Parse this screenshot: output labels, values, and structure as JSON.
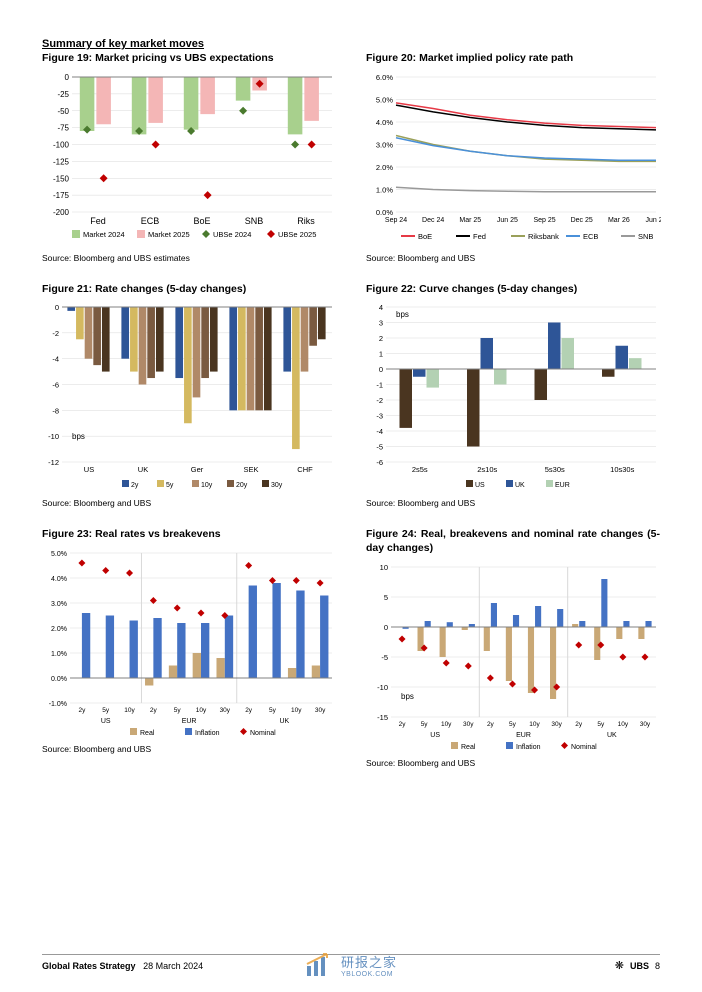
{
  "summary_title": "Summary of key market moves",
  "footer": {
    "title": "Global Rates Strategy",
    "date": "28 March 2024",
    "bank": "UBS",
    "page": "8"
  },
  "watermark": {
    "text": "研报之家",
    "sub": "YBLOOK.COM"
  },
  "colors": {
    "green": "#a8d08d",
    "pink": "#f4b6b6",
    "darkgreen": "#4a7a2e",
    "red": "#c00000",
    "blue": "#4472c4",
    "darkblue": "#2e5597",
    "yellow": "#d4b960",
    "brown": "#b08968",
    "brown2": "#7a5a40",
    "darkbrown": "#4a3520",
    "boe_red": "#e63946",
    "fed_black": "#000000",
    "riks_olive": "#9aa05a",
    "ecb_blue": "#4a90d9",
    "snb_gray": "#999999",
    "tan": "#c9a876",
    "grid": "#d9d9d9",
    "axis": "#808080"
  },
  "fig19": {
    "title": "Figure 19: Market pricing vs UBS expectations",
    "source": "Source: Bloomberg and UBS estimates",
    "categories": [
      "Fed",
      "ECB",
      "BoE",
      "SNB",
      "Riks"
    ],
    "y_ticks": [
      0,
      -25,
      -50,
      -75,
      -100,
      -125,
      -150,
      -175,
      -200
    ],
    "market_2024": [
      -80,
      -85,
      -78,
      -35,
      -85
    ],
    "market_2025": [
      -70,
      -68,
      -55,
      -20,
      -65
    ],
    "ubse_2024": [
      -78,
      -80,
      -80,
      -50,
      -100
    ],
    "ubse_2025": [
      -150,
      -100,
      -175,
      -10,
      -100
    ],
    "legend": [
      "Market 2024",
      "Market 2025",
      "UBSe 2024",
      "UBSe 2025"
    ]
  },
  "fig20": {
    "title": "Figure 20: Market implied policy rate path",
    "source": "Source: Bloomberg and UBS",
    "x_labels": [
      "Sep 24",
      "Dec 24",
      "Mar 25",
      "Jun 25",
      "Sep 25",
      "Dec 25",
      "Mar 26",
      "Jun 26"
    ],
    "y_ticks": [
      "0.0%",
      "1.0%",
      "2.0%",
      "3.0%",
      "4.0%",
      "5.0%",
      "6.0%"
    ],
    "series": {
      "BoE": [
        4.85,
        4.6,
        4.3,
        4.1,
        3.95,
        3.85,
        3.8,
        3.75
      ],
      "Fed": [
        4.75,
        4.45,
        4.2,
        4.0,
        3.85,
        3.75,
        3.7,
        3.65
      ],
      "Riksbank": [
        3.4,
        3.0,
        2.7,
        2.5,
        2.35,
        2.3,
        2.25,
        2.25
      ],
      "ECB": [
        3.3,
        2.95,
        2.7,
        2.5,
        2.4,
        2.35,
        2.3,
        2.3
      ],
      "SNB": [
        1.1,
        1.0,
        0.95,
        0.92,
        0.9,
        0.9,
        0.9,
        0.9
      ]
    },
    "legend": [
      "BoE",
      "Fed",
      "Riksbank",
      "ECB",
      "SNB"
    ]
  },
  "fig21": {
    "title": "Figure 21: Rate changes (5-day changes)",
    "source": "Source: Bloomberg and UBS",
    "y_label": "bps",
    "categories": [
      "US",
      "UK",
      "Ger",
      "SEK",
      "CHF"
    ],
    "y_ticks": [
      0,
      -2,
      -4,
      -6,
      -8,
      -10,
      -12
    ],
    "tenors": [
      "2y",
      "5y",
      "10y",
      "20y",
      "30y"
    ],
    "data": {
      "US": [
        -0.3,
        -2.5,
        -4.0,
        -4.5,
        -5.0
      ],
      "UK": [
        -4.0,
        -5.0,
        -6.0,
        -5.5,
        -5.0
      ],
      "Ger": [
        -5.5,
        -9.0,
        -7.0,
        -5.5,
        -5.0
      ],
      "SEK": [
        -8.0,
        -8.0,
        -8.0,
        -8.0,
        -8.0
      ],
      "CHF": [
        -5.0,
        -11.0,
        -5.0,
        -3.0,
        -2.5
      ]
    }
  },
  "fig22": {
    "title": "Figure 22: Curve changes (5-day changes)",
    "source": "Source: Bloomberg and UBS",
    "y_label": "bps",
    "categories": [
      "2s5s",
      "2s10s",
      "5s30s",
      "10s30s"
    ],
    "y_ticks": [
      4,
      3,
      2,
      1,
      0,
      -1,
      -2,
      -3,
      -4,
      -5,
      -6
    ],
    "regions": [
      "US",
      "UK",
      "EUR"
    ],
    "data": {
      "2s5s": [
        -3.8,
        -0.5,
        -1.2
      ],
      "2s10s": [
        -5.0,
        2.0,
        -1.0
      ],
      "5s30s": [
        -2.0,
        3.0,
        2.0
      ],
      "10s30s": [
        -0.5,
        1.5,
        0.7
      ]
    }
  },
  "fig23": {
    "title": "Figure 23: Real rates vs breakevens",
    "source": "Source: Bloomberg and UBS",
    "categories": [
      {
        "region": "US",
        "tenors": [
          "2y",
          "5y",
          "10y"
        ]
      },
      {
        "region": "EUR",
        "tenors": [
          "2y",
          "5y",
          "10y",
          "30y"
        ]
      },
      {
        "region": "UK",
        "tenors": [
          "2y",
          "5y",
          "10y",
          "30y"
        ]
      }
    ],
    "y_ticks": [
      "-1.0%",
      "0.0%",
      "1.0%",
      "2.0%",
      "3.0%",
      "4.0%",
      "5.0%"
    ],
    "real": [
      0.0,
      0.0,
      0.0,
      -0.3,
      0.5,
      1.0,
      0.8,
      0.0,
      0.0,
      0.4,
      0.5
    ],
    "inflation": [
      2.6,
      2.5,
      2.3,
      2.4,
      2.2,
      2.2,
      2.5,
      3.7,
      3.8,
      3.5,
      3.3
    ],
    "nominal": [
      4.6,
      4.3,
      4.2,
      3.1,
      2.8,
      2.6,
      2.5,
      4.5,
      3.9,
      3.9,
      3.8
    ],
    "legend": [
      "Real",
      "Inflation",
      "Nominal"
    ]
  },
  "fig24": {
    "title": "Figure 24: Real, breakevens and nominal rate changes (5-day changes)",
    "source": "Source: Bloomberg and UBS",
    "y_label": "bps",
    "categories": [
      {
        "region": "US",
        "tenors": [
          "2y",
          "5y",
          "10y",
          "30y"
        ]
      },
      {
        "region": "EUR",
        "tenors": [
          "2y",
          "5y",
          "10y",
          "30y"
        ]
      },
      {
        "region": "UK",
        "tenors": [
          "2y",
          "5y",
          "10y",
          "30y"
        ]
      }
    ],
    "y_ticks": [
      10,
      5,
      0,
      -5,
      -10,
      -15
    ],
    "real": [
      0.0,
      -4.0,
      -5.0,
      -0.5,
      -4.0,
      -9.0,
      -11.0,
      -12.0,
      0.5,
      -5.5,
      -2.0,
      -2.0
    ],
    "inflation": [
      -0.3,
      1.0,
      0.8,
      0.5,
      4.0,
      2.0,
      3.5,
      3.0,
      1.0,
      8.0,
      1.0,
      1.0
    ],
    "nominal": [
      -2.0,
      -3.5,
      -6.0,
      -6.5,
      -8.5,
      -9.5,
      -10.5,
      -10.0,
      -3.0,
      -3.0,
      -5.0,
      -5.0
    ],
    "legend": [
      "Real",
      "Inflation",
      "Nominal"
    ]
  }
}
